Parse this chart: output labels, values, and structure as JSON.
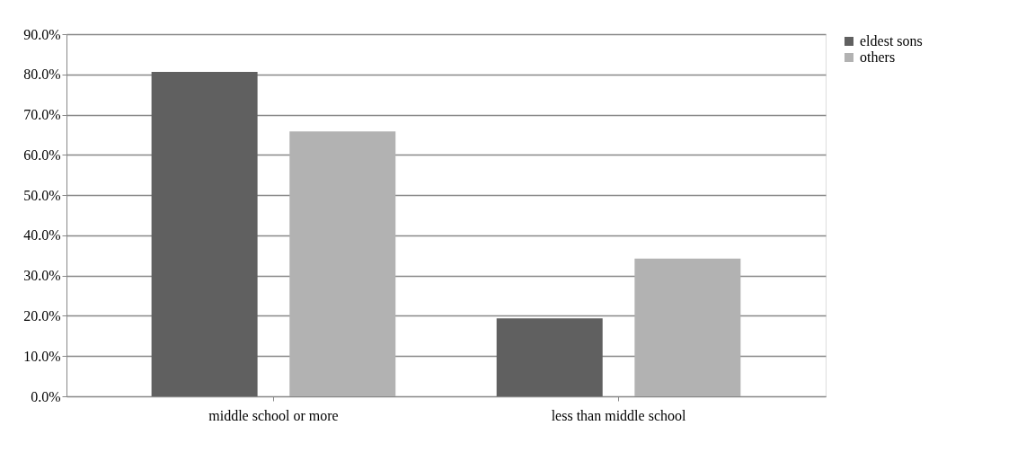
{
  "chart_data": {
    "type": "bar",
    "categories": [
      "middle school or more",
      "less than middle school"
    ],
    "series": [
      {
        "name": "eldest sons",
        "color": "#606060",
        "values": [
          80.6,
          19.4
        ]
      },
      {
        "name": "others",
        "color": "#b2b2b2",
        "values": [
          65.8,
          34.2
        ]
      }
    ],
    "ylim": [
      0,
      90
    ],
    "yticks": [
      {
        "value": 0,
        "label": "0.0%"
      },
      {
        "value": 10,
        "label": "10.0%"
      },
      {
        "value": 20,
        "label": "20.0%"
      },
      {
        "value": 30,
        "label": "30.0%"
      },
      {
        "value": 40,
        "label": "40.0%"
      },
      {
        "value": 50,
        "label": "50.0%"
      },
      {
        "value": 60,
        "label": "60.0%"
      },
      {
        "value": 70,
        "label": "70.0%"
      },
      {
        "value": 80,
        "label": "80.0%"
      },
      {
        "value": 90,
        "label": "90.0%"
      }
    ],
    "grid": "y",
    "legend": "right"
  }
}
